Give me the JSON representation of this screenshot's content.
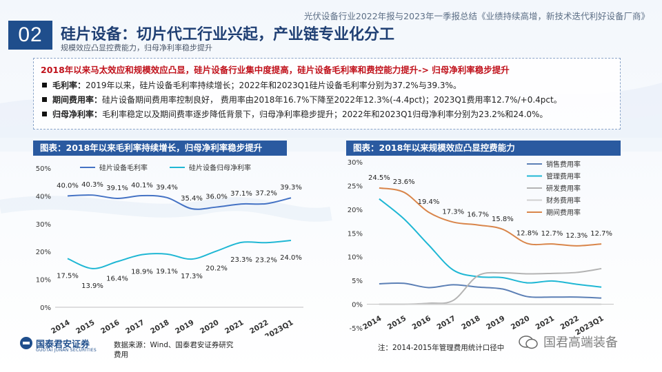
{
  "header": {
    "report_title": "光伏设备行业2022年报与2023年一季报总结《业绩持续高增，新技术迭代利好设备厂商》",
    "section_number": "02",
    "main_title": "硅片设备：切片代工行业兴起，产业链专业化分工",
    "sub_title": "规模效应凸显控费能力，归母净利率稳步提升"
  },
  "summary": {
    "headline": "2018年以来马太效应和规模效应凸显，硅片设备行业集中度提高，硅片设备毛利率和费控能力提升-> 归母净利率稳步提升",
    "bullets": [
      {
        "label": "毛利率：",
        "text": "2019年以来，硅片设备毛利率持续增长；2022年和2023Q1硅片设备毛利率分别为37.2%与39.3%。"
      },
      {
        "label": "期间费用率：",
        "text": "硅片设备期间费用率控制良好，  费用率由2018年16.7%下降至2022年12.3%(-4.4pct)；2023Q1费用率12.7%/+0.4pct。"
      },
      {
        "label": "归母净利率：",
        "text": "毛利率稳定以及期间费率逐步降低背景下，归母净利率稳步提升；2022年和2023Q1归母净利率分别为23.2%和24.0%。"
      }
    ]
  },
  "panels": {
    "left_title": "图表：2018年以来毛利率持续增长，归母净利率稳步提升",
    "right_title": "图表：2018年以来规模效应凸显控费能力"
  },
  "chart_data": [
    {
      "type": "line",
      "title": "图表：2018年以来毛利率持续增长，归母净利率稳步提升",
      "categories": [
        "2014",
        "2015",
        "2016",
        "2017",
        "2018",
        "2019",
        "2020",
        "2021",
        "2022",
        "2023Q1"
      ],
      "ylim": [
        0,
        50
      ],
      "yticks": [
        "0%",
        "10%",
        "20%",
        "30%",
        "40%",
        "50%"
      ],
      "legend": "top",
      "series": [
        {
          "name": "硅片设备毛利率",
          "color": "#4472c4",
          "values": [
            40.0,
            40.3,
            39.1,
            40.1,
            39.4,
            35.4,
            36.0,
            37.1,
            37.2,
            39.3
          ],
          "labels": [
            "40.0%",
            "40.3%",
            "39.1%",
            "40.1%",
            "39.4%",
            "35.4%",
            "36.0%",
            "37.1%",
            "37.2%",
            "39.3%"
          ]
        },
        {
          "name": "硅片设备归母净利率",
          "color": "#1fb7d4",
          "values": [
            17.5,
            13.9,
            16.4,
            18.9,
            19.1,
            17.3,
            20.2,
            23.3,
            23.2,
            24.0
          ],
          "labels": [
            "17.5%",
            "13.9%",
            "16.4%",
            "18.9%",
            "19.1%",
            "17.3%",
            "20.2%",
            "23.3%",
            "23.2%",
            "24.0%"
          ]
        }
      ]
    },
    {
      "type": "line",
      "title": "图表：2018年以来规模效应凸显控费能力",
      "categories": [
        "2014",
        "2015",
        "2016",
        "2017",
        "2018",
        "2019",
        "2020",
        "2021",
        "2022",
        "2023Q1"
      ],
      "ylim": [
        -5,
        30
      ],
      "yticks": [
        "-5%",
        "0%",
        "5%",
        "10%",
        "15%",
        "20%",
        "25%",
        "30%"
      ],
      "legend": "right",
      "series": [
        {
          "name": "销售费用率",
          "color": "#5b7fb5",
          "values": [
            4.3,
            4.4,
            3.5,
            4.1,
            3.6,
            3.2,
            1.6,
            1.5,
            1.5,
            1.3
          ]
        },
        {
          "name": "管理费用率",
          "color": "#1fb7d4",
          "values": [
            22.2,
            18.0,
            12.5,
            7.2,
            5.8,
            5.6,
            4.5,
            4.9,
            4.2,
            3.6
          ]
        },
        {
          "name": "研发费用率",
          "color": "#b3b3b3",
          "values": [
            0,
            0,
            0.2,
            0.8,
            6.0,
            6.6,
            6.4,
            6.5,
            6.7,
            7.5
          ]
        },
        {
          "name": "财务费用率",
          "color": "#d0d0d0",
          "values": [
            0,
            0,
            0,
            0,
            0,
            0,
            0,
            0,
            0,
            0
          ]
        },
        {
          "name": "期间费用率",
          "color": "#d9854a",
          "values": [
            24.5,
            23.6,
            19.4,
            17.3,
            16.7,
            15.8,
            12.8,
            12.7,
            12.3,
            12.7
          ],
          "labels": [
            "24.5%",
            "23.6%",
            "19.4%",
            "17.3%",
            "16.7%",
            "15.8%",
            "12.8%",
            "12.7%",
            "12.3%",
            "12.7%"
          ]
        }
      ]
    }
  ],
  "footer": {
    "logo_name": "国泰君安证券",
    "logo_en": "GUOTAI JUNAN SECURITIES",
    "source": "数据来源：Wind、国泰君安证券研究",
    "source_suffix": "费用",
    "note": "注：2014-2015年管理费用统计口径中",
    "watermark": "国君高端装备"
  }
}
